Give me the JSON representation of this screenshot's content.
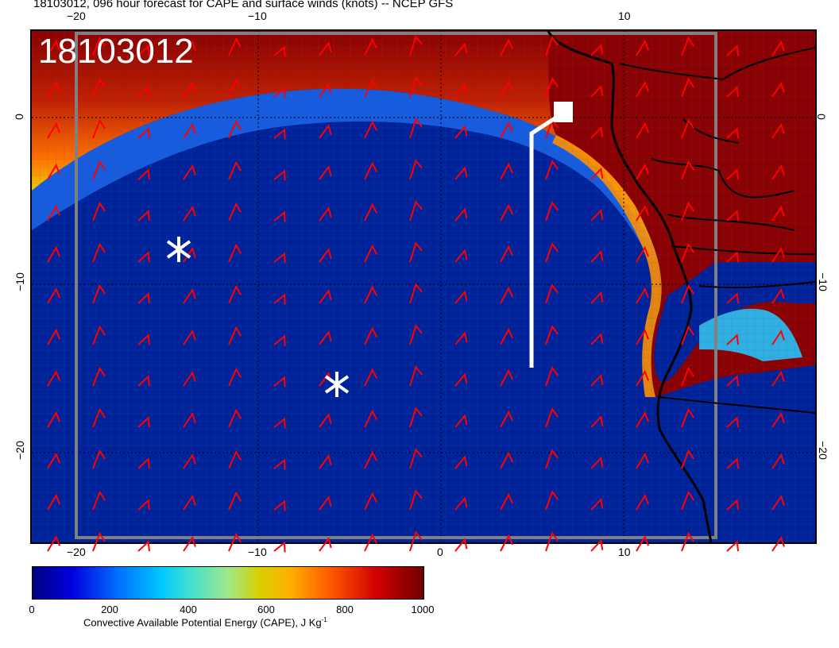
{
  "title": "18103012, 096 hour forecast for CAPE and surface winds (knots) -- NCEP GFS",
  "stamp": "18103012",
  "map": {
    "lon_ticks_bottom": [
      "−20",
      "−10",
      "0",
      "10"
    ],
    "lon_ticks_top": [
      "−20",
      "−10",
      "10"
    ],
    "lat_ticks_left": [
      "0",
      "−10",
      "−20"
    ],
    "lat_ticks_right": [
      "0",
      "−10",
      "−20"
    ],
    "colors": {
      "ocean_low_cape": "#00239a",
      "land_high_cape": "#8b0000",
      "wind_barbs": "#ff0000",
      "coastline": "#000000",
      "track": "#ffffff"
    },
    "markers": [
      "asterisk",
      "asterisk",
      "station-square"
    ]
  },
  "colorbar": {
    "ticks": [
      "0",
      "200",
      "400",
      "600",
      "800",
      "1000"
    ],
    "label": "Convective Available Potential Energy (CAPE), J Kg",
    "label_sup": "-1"
  }
}
